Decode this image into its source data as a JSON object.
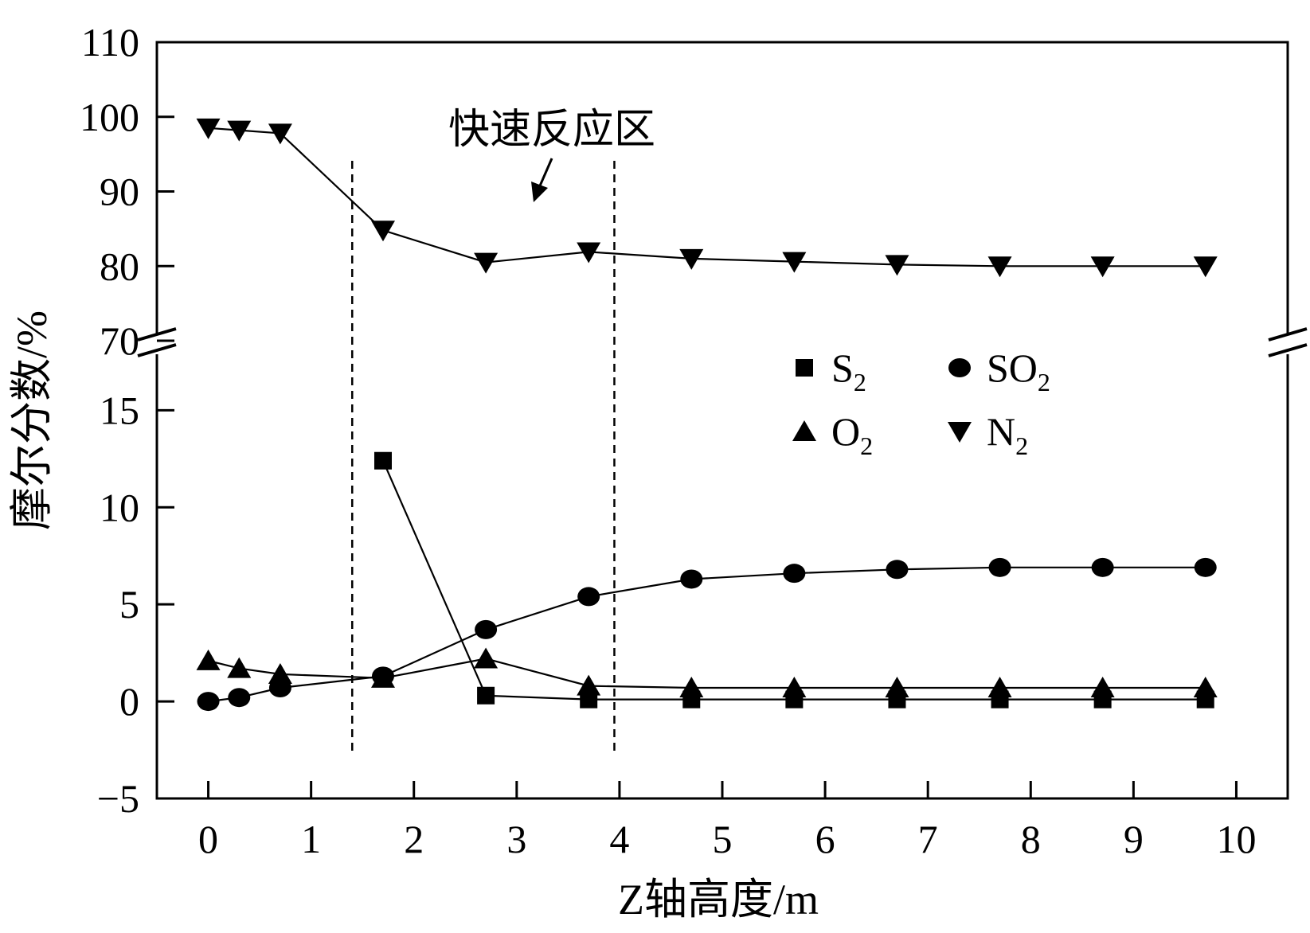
{
  "chart_data": {
    "type": "line",
    "title": "",
    "xlabel": "Z轴高度/m",
    "ylabel": "摩尔分数/%",
    "xlim": [
      -0.5,
      10.5
    ],
    "x_ticks": [
      0,
      1,
      2,
      3,
      4,
      5,
      6,
      7,
      8,
      9,
      10
    ],
    "y_lower": {
      "range": [
        -5,
        18.5
      ],
      "ticks": [
        -5,
        0,
        5,
        10,
        15
      ]
    },
    "y_upper": {
      "range": [
        70,
        110
      ],
      "ticks": [
        70,
        80,
        90,
        100,
        110
      ]
    },
    "axis_break": "between 18.5 and 70",
    "grid": false,
    "legend_position": "center-right",
    "series": [
      {
        "name": "S2",
        "marker": "square",
        "x": [
          1.7,
          2.7,
          3.7,
          4.7,
          5.7,
          6.7,
          7.7,
          8.7,
          9.7
        ],
        "y": [
          12.4,
          0.3,
          0.1,
          0.1,
          0.1,
          0.1,
          0.1,
          0.1,
          0.1
        ]
      },
      {
        "name": "SO2",
        "marker": "circle",
        "x": [
          0,
          0.3,
          0.7,
          1.7,
          2.7,
          3.7,
          4.7,
          5.7,
          6.7,
          7.7,
          8.7,
          9.7
        ],
        "y": [
          0.0,
          0.2,
          0.7,
          1.3,
          3.7,
          5.4,
          6.3,
          6.6,
          6.8,
          6.9,
          6.9,
          6.9
        ]
      },
      {
        "name": "O2",
        "marker": "triangle-up",
        "x": [
          0,
          0.3,
          0.7,
          1.7,
          2.7,
          3.7,
          4.7,
          5.7,
          6.7,
          7.7,
          8.7,
          9.7
        ],
        "y": [
          2.1,
          1.7,
          1.4,
          1.2,
          2.2,
          0.8,
          0.7,
          0.7,
          0.7,
          0.7,
          0.7,
          0.7
        ]
      },
      {
        "name": "N2",
        "marker": "triangle-down",
        "x": [
          0,
          0.3,
          0.7,
          1.7,
          2.7,
          3.7,
          4.7,
          5.7,
          6.7,
          7.7,
          8.7,
          9.7
        ],
        "y": [
          98.5,
          98.2,
          97.8,
          84.8,
          80.5,
          81.9,
          81.0,
          80.6,
          80.2,
          80.0,
          80.0,
          80.0
        ]
      }
    ],
    "legend": [
      {
        "main": "S",
        "sub": "2",
        "marker": "square"
      },
      {
        "main": "SO",
        "sub": "2",
        "marker": "circle"
      },
      {
        "main": "O",
        "sub": "2",
        "marker": "triangle-up"
      },
      {
        "main": "N",
        "sub": "2",
        "marker": "triangle-down"
      }
    ],
    "region": {
      "label": "快速反应区",
      "x_start": 1.4,
      "x_end": 3.95
    }
  }
}
